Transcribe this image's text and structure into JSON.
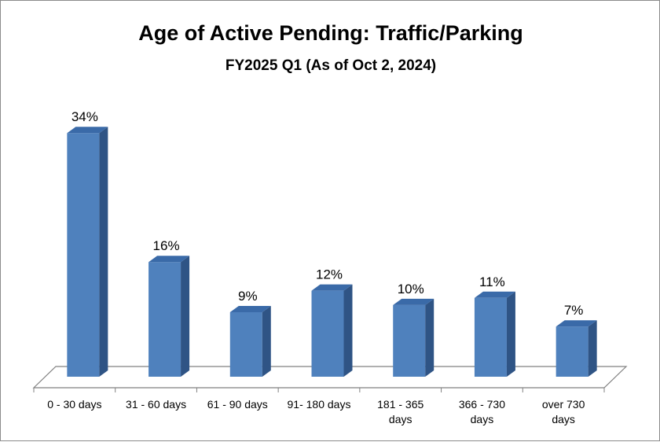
{
  "chart_data": {
    "type": "bar",
    "title": "Age of Active Pending: Traffic/Parking",
    "subtitle": "FY2025 Q1 (As of Oct 2, 2024)",
    "categories": [
      [
        "0 - 30 days"
      ],
      [
        "31 - 60 days"
      ],
      [
        "61 - 90 days"
      ],
      [
        "91- 180 days"
      ],
      [
        "181 - 365",
        "days"
      ],
      [
        "366 - 730",
        "days"
      ],
      [
        "over 730",
        "days"
      ]
    ],
    "values": [
      34,
      16,
      9,
      12,
      10,
      11,
      7
    ],
    "value_labels": [
      "34%",
      "16%",
      "9%",
      "12%",
      "10%",
      "11%",
      "7%"
    ],
    "unit": "%",
    "ylim": [
      0,
      36
    ],
    "xlabel": "",
    "ylabel": "",
    "grid": false,
    "legend": "none",
    "bar_color": "#4f81bd",
    "bar_side_color": "#2f5485",
    "bar_top_color": "#3a6aa8",
    "floor_color": "#808080"
  }
}
